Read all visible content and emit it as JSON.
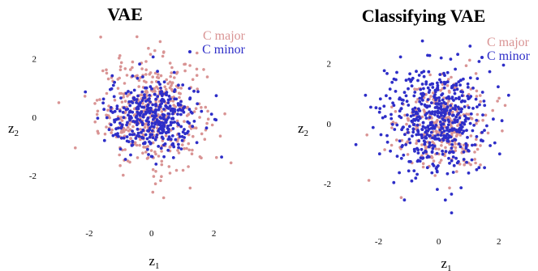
{
  "chart_data": [
    {
      "type": "scatter",
      "title": "VAE",
      "xlabel": "z",
      "xlabel_sub": "1",
      "ylabel": "z",
      "ylabel_sub": "2",
      "xticks": [
        -2,
        0,
        2
      ],
      "yticks": [
        -2,
        0,
        2
      ],
      "xlim": [
        -3.3,
        3.0
      ],
      "ylim": [
        -3.6,
        2.9
      ],
      "legend": "top-right",
      "series": [
        {
          "name": "C major",
          "color": "#d99494",
          "dist": {
            "cx": 0.0,
            "cy": 0.15,
            "sx": 0.85,
            "sy": 0.95,
            "n": 430
          }
        },
        {
          "name": "C minor",
          "color": "#2e2ec8",
          "dist": {
            "cx": 0.05,
            "cy": 0.0,
            "sx": 0.75,
            "sy": 0.65,
            "n": 380
          }
        }
      ]
    },
    {
      "type": "scatter",
      "title": "Classifying VAE",
      "xlabel": "z",
      "xlabel_sub": "1",
      "ylabel": "z",
      "ylabel_sub": "2",
      "xticks": [
        -2,
        0,
        2
      ],
      "yticks": [
        -2,
        0,
        2
      ],
      "xlim": [
        -3.2,
        2.9
      ],
      "ylim": [
        -3.5,
        2.9
      ],
      "legend": "top-right",
      "series": [
        {
          "name": "C major",
          "color": "#d99494",
          "dist": {
            "cx": 0.1,
            "cy": -0.05,
            "sx": 0.75,
            "sy": 0.8,
            "n": 300
          }
        },
        {
          "name": "C minor",
          "color": "#2e2ec8",
          "dist": {
            "cx": -0.15,
            "cy": 0.15,
            "sx": 0.85,
            "sy": 0.85,
            "n": 520
          }
        }
      ]
    }
  ]
}
